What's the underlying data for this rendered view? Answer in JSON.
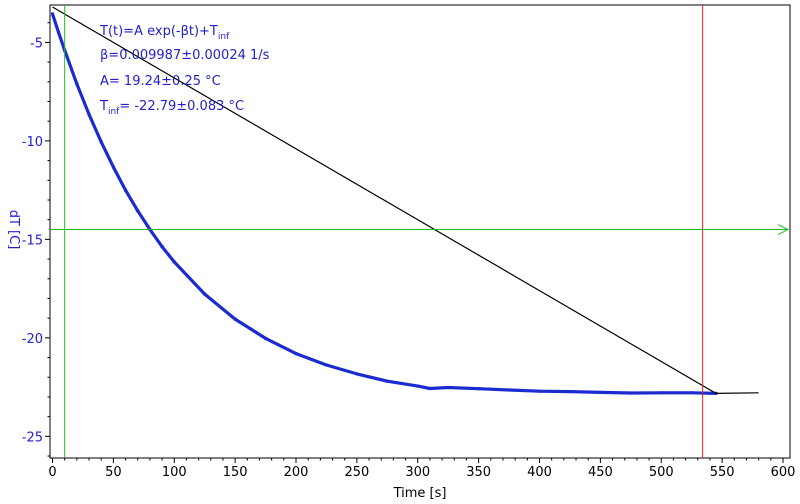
{
  "chart_data": {
    "type": "scatter",
    "xlabel": "Time [s]",
    "ylabel": "dT [C]",
    "xlim": [
      0,
      600
    ],
    "ylim": [
      -26.1,
      -3.1
    ],
    "x_ticks": [
      0,
      50,
      100,
      150,
      200,
      250,
      300,
      350,
      400,
      450,
      500,
      550,
      600
    ],
    "y_ticks": [
      -5,
      -10,
      -15,
      -20,
      -25
    ],
    "grid": false,
    "annotations": {
      "formula_main": "T(t)=A exp(-βt)+T",
      "formula_sub": "inf",
      "beta": "β=0.009987±0.00024 1/s",
      "amp": "A= 19.24±0.25 °C",
      "tinf_main": "T",
      "tinf_sub": "inf",
      "tinf_rest": "= -22.79±0.083 °C"
    },
    "fit": {
      "A": 19.24,
      "beta": 0.009987,
      "T_inf": -22.79
    },
    "series": [
      {
        "kind": "measured",
        "color": "#1a2bd0",
        "x": [
          0,
          5,
          10,
          20,
          30,
          40,
          50,
          60,
          70,
          80,
          90,
          100,
          125,
          150,
          175,
          200,
          225,
          250,
          275,
          300,
          310,
          325,
          350,
          375,
          400,
          425,
          450,
          475,
          500,
          525,
          545
        ],
        "y": [
          -3.55,
          -4.5,
          -5.4,
          -7.1,
          -8.65,
          -10.05,
          -11.33,
          -12.5,
          -13.55,
          -14.5,
          -15.37,
          -16.15,
          -17.78,
          -19.05,
          -20.03,
          -20.8,
          -21.38,
          -21.83,
          -22.2,
          -22.45,
          -22.57,
          -22.52,
          -22.58,
          -22.65,
          -22.71,
          -22.73,
          -22.77,
          -22.8,
          -22.79,
          -22.79,
          -22.82
        ]
      },
      {
        "kind": "extension",
        "color": "#000000",
        "x": [
          0,
          545,
          580
        ],
        "y": [
          -3.2,
          -22.82,
          -22.79
        ]
      }
    ],
    "markers": {
      "vertical_green_x": 10,
      "vertical_red_x": 534,
      "horizontal_green_y": -14.5,
      "green_color": "#22bb22",
      "red_color": "#dd2222"
    },
    "colors": {
      "axis_label": "#2222cc",
      "tick_y": "#2222cc",
      "tick_x": "#000000"
    }
  }
}
